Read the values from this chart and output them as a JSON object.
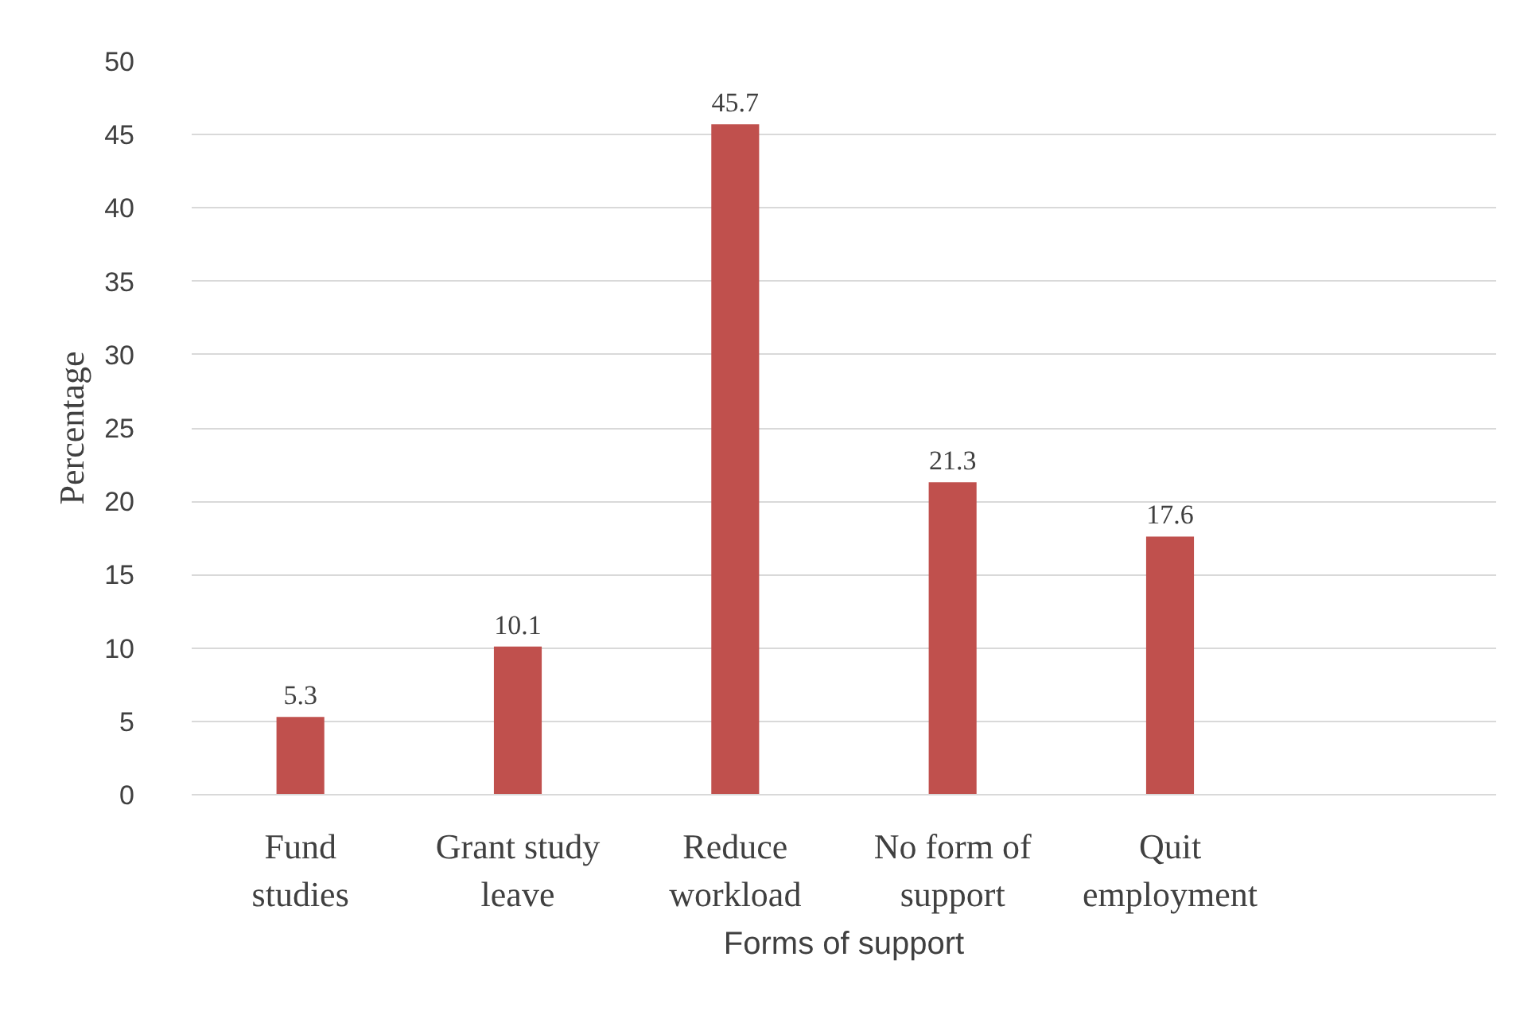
{
  "chart_data": {
    "type": "bar",
    "xlabel": "Forms of support",
    "ylabel": "Percentage",
    "categories": [
      "Fund\nstudies",
      "Grant study\nleave",
      "Reduce\nworkload",
      "No form of\nsupport",
      "Quit\nemployment",
      null
    ],
    "values": [
      5.3,
      10.1,
      45.7,
      21.3,
      17.6,
      null
    ],
    "color": "#c0504d",
    "ylim": [
      0,
      50
    ],
    "yticks": [
      0,
      5,
      10,
      15,
      20,
      25,
      30,
      35,
      40,
      45,
      50
    ],
    "grid": "y",
    "data_labels": true
  }
}
